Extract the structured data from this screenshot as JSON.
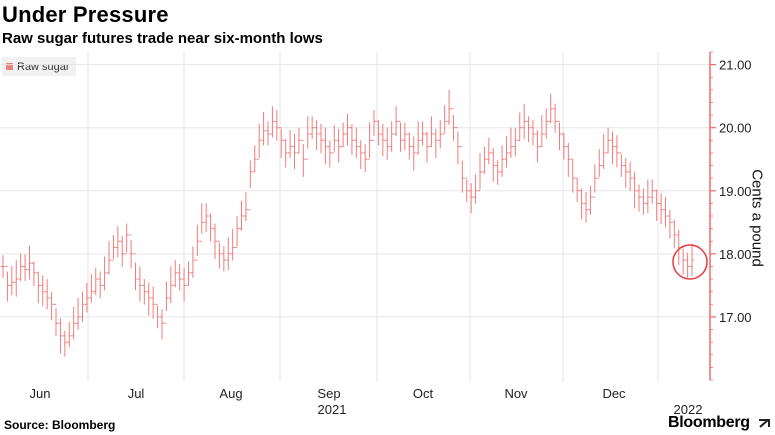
{
  "title": "Under Pressure",
  "subtitle": "Raw sugar futures trade near six-month lows",
  "source": "Source: Bloomberg",
  "brand": "Bloomberg",
  "brand_icon": "arrow-icon",
  "colors": {
    "series": "#f07c7c",
    "axis": "#f06a6a",
    "grid": "#e6e6e6",
    "circle": "#e8393f"
  },
  "chart_data": {
    "type": "ohlc",
    "title": "Under Pressure",
    "subtitle": "Raw sugar futures trade near six-month lows",
    "ylabel": "Cents a pound",
    "y_axis_position": "right",
    "ylim": [
      16.0,
      21.2
    ],
    "yticks": [
      17.0,
      18.0,
      19.0,
      20.0,
      21.0
    ],
    "ytick_labels": [
      "17.00",
      "18.00",
      "19.00",
      "20.00",
      "21.00"
    ],
    "xtick_labels": [
      "Jun",
      "Jul",
      "Aug",
      "Sep",
      "Oct",
      "Nov",
      "Dec"
    ],
    "xlabel_years": [
      "2021",
      "2022"
    ],
    "grid": true,
    "legend_position": "top-left",
    "series": [
      {
        "name": "Raw sugar",
        "values": [
          17.8,
          17.5,
          17.55,
          17.6,
          17.8,
          17.75,
          17.85,
          17.7,
          17.5,
          17.4,
          17.3,
          17.2,
          16.9,
          16.7,
          16.6,
          16.7,
          16.9,
          17.0,
          17.2,
          17.3,
          17.4,
          17.6,
          17.5,
          17.7,
          17.9,
          18.1,
          18.2,
          18.0,
          18.3,
          18.0,
          17.6,
          17.5,
          17.4,
          17.3,
          17.2,
          17.0,
          16.9,
          17.3,
          17.5,
          17.7,
          17.6,
          17.5,
          17.7,
          17.9,
          18.2,
          18.5,
          18.6,
          18.4,
          18.2,
          18.0,
          17.9,
          18.0,
          18.1,
          18.4,
          18.6,
          18.7,
          19.3,
          19.5,
          19.8,
          19.95,
          19.9,
          20.1,
          20.0,
          19.8,
          19.6,
          19.7,
          19.6,
          19.8,
          19.5,
          19.9,
          20.0,
          19.9,
          19.8,
          19.7,
          19.6,
          19.8,
          19.7,
          19.9,
          20.0,
          19.8,
          19.7,
          19.6,
          19.5,
          19.8,
          20.1,
          19.9,
          19.8,
          19.7,
          19.9,
          20.1,
          19.8,
          19.9,
          19.7,
          19.6,
          19.8,
          19.9,
          19.7,
          19.9,
          19.8,
          19.9,
          20.1,
          20.3,
          20.0,
          19.7,
          19.2,
          19.0,
          18.9,
          19.0,
          19.3,
          19.5,
          19.6,
          19.4,
          19.3,
          19.5,
          19.6,
          19.7,
          19.8,
          20.0,
          20.1,
          20.0,
          19.9,
          19.7,
          19.9,
          20.1,
          20.3,
          20.1,
          19.9,
          19.7,
          19.5,
          19.2,
          19.0,
          18.8,
          18.7,
          18.9,
          19.2,
          19.4,
          19.6,
          19.8,
          19.7,
          19.6,
          19.4,
          19.3,
          19.2,
          19.0,
          18.9,
          18.8,
          18.9,
          19.0,
          18.8,
          18.7,
          18.6,
          18.5,
          18.3,
          18.1,
          17.9,
          17.8,
          17.9
        ]
      }
    ]
  }
}
